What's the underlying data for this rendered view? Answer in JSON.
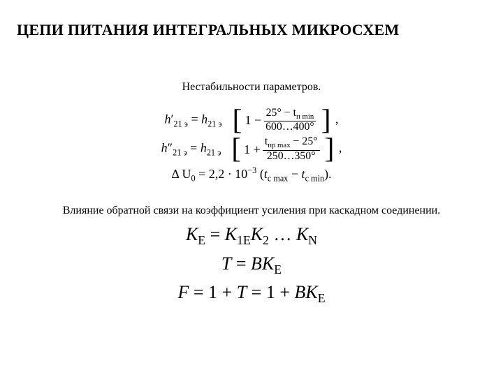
{
  "title": "ЦЕПИ ПИТАНИЯ ИНТЕГРАЛЬНЫХ МИКРОСХЕМ",
  "section1": {
    "subtitle": "Нестабильности параметров.",
    "eq1": {
      "lhs_base": "h",
      "lhs_prime": "′",
      "lhs_sub": "21 э",
      "eq": " = ",
      "rhs_base": "h",
      "rhs_sub": "21 э",
      "open": "[",
      "one_minus": "1 −",
      "frac_num": "25° − t",
      "frac_num_sub": "п min",
      "frac_den": "600…400°",
      "close": "]",
      "tail": ","
    },
    "eq2": {
      "lhs_base": "h",
      "lhs_prime": "″",
      "lhs_sub": "21 э",
      "eq": " = ",
      "rhs_base": "h",
      "rhs_sub": "21 э",
      "open": "[",
      "one_plus": "1 +",
      "frac_num": "t",
      "frac_num_sub": "пр max",
      "frac_num_tail": " − 25°",
      "frac_den": "250…350°",
      "close": "]",
      "tail": ","
    },
    "eq3": {
      "lhs": "Δ U",
      "lhs_sub": "0",
      "eq": " = 2,2 · 10",
      "exp": "−3",
      "paren_open": " (",
      "t1": "t",
      "t1_sub": "c max",
      "minus": " − ",
      "t2": "t",
      "t2_sub": "c min",
      "paren_close": ")."
    }
  },
  "section2": {
    "subtitle": "Влияние обратной связи на коэффициент усиления при каскадном соединении.",
    "eq1": {
      "K": "K",
      "E": "E",
      "eq": " = ",
      "K1": "K",
      "sub1": "1E",
      "K2": "K",
      "sub2": "2",
      "dots": " … ",
      "KN": "K",
      "subN": "N"
    },
    "eq2": {
      "T": "T",
      "eq": " = ",
      "B": "B",
      "K": "K",
      "E": "E"
    },
    "eq3": {
      "F": "F",
      "eq1": " = 1 + ",
      "T": "T",
      "eq2": " = 1 + ",
      "B": "B",
      "K": "K",
      "E": "E"
    }
  },
  "style": {
    "bg": "#ffffff",
    "text": "#000000",
    "title_fontsize": 22,
    "subtitle_fontsize": 16,
    "eq_small_fontsize": 18,
    "eq_big_fontsize": 26,
    "font_family": "Times New Roman"
  }
}
